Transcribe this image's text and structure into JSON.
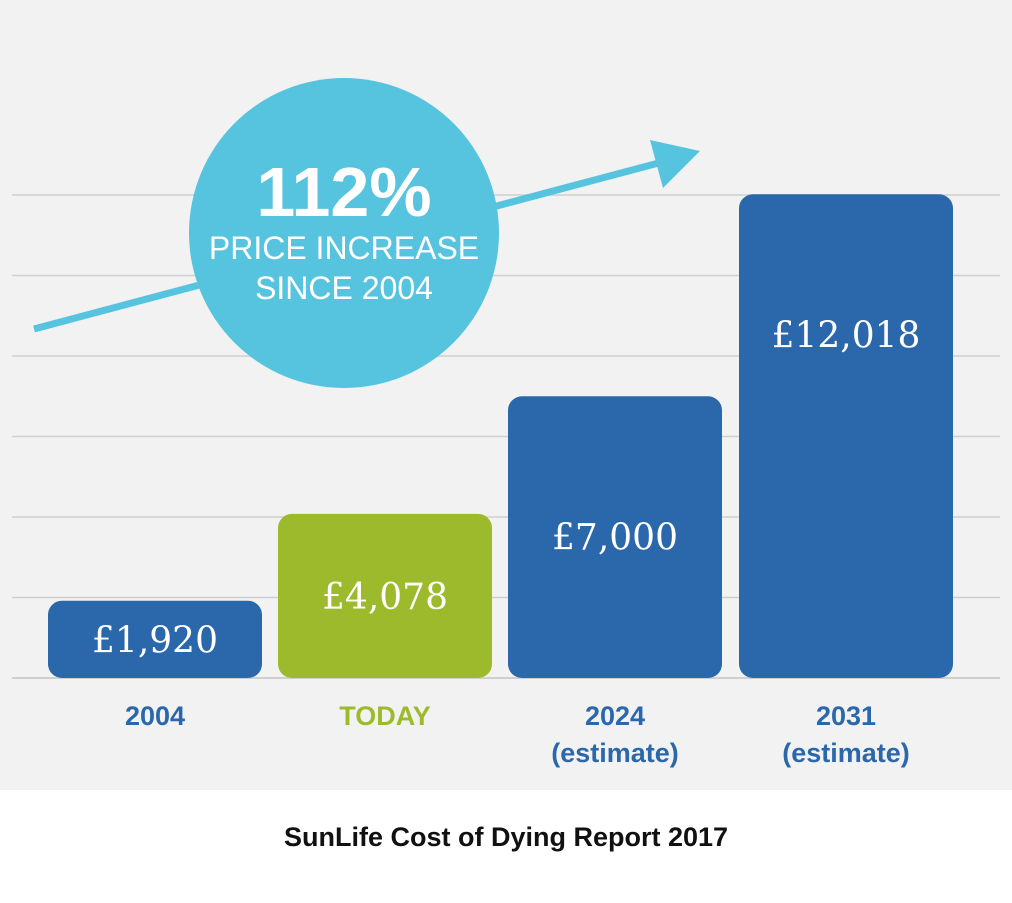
{
  "chart_data": {
    "type": "bar",
    "categories": [
      {
        "line1": "2004",
        "line2": ""
      },
      {
        "line1": "TODAY",
        "line2": ""
      },
      {
        "line1": "2024",
        "line2": "(estimate)"
      },
      {
        "line1": "2031",
        "line2": "(estimate)"
      }
    ],
    "values": [
      1920,
      4078,
      7000,
      12018
    ],
    "value_labels": [
      "£1,920",
      "£4,078",
      "£7,000",
      "£12,018"
    ],
    "bar_colors": [
      "#2a67ab",
      "#9dba2d",
      "#2a67ab",
      "#2a67ab"
    ],
    "label_colors": [
      "#2a67ab",
      "#9dba2d",
      "#2a67ab",
      "#2a67ab"
    ],
    "ylim": [
      0,
      12000
    ],
    "grid": true,
    "callout": {
      "headline": "112%",
      "line1": "PRICE INCREASE",
      "line2": "SINCE 2004",
      "color": "#56c4df"
    }
  },
  "caption": "SunLife Cost of Dying Report 2017"
}
